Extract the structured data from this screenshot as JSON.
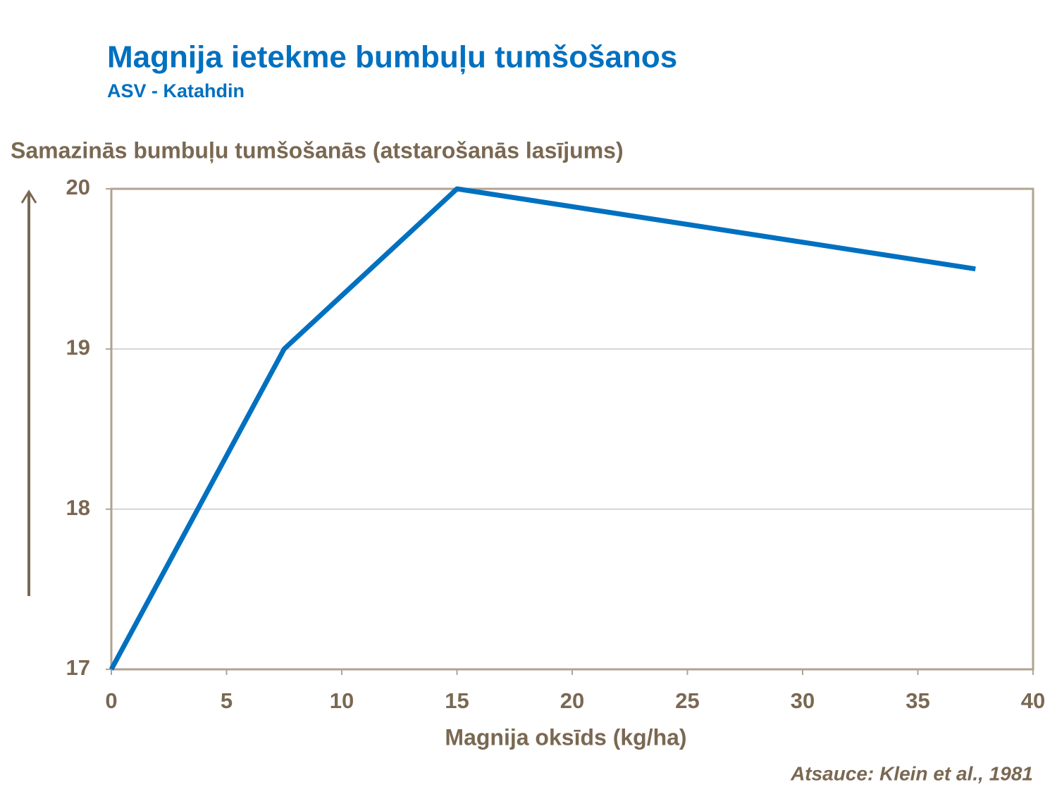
{
  "chart_data": {
    "type": "line",
    "title": "Magnija ietekme bumbuļu tumšošanos",
    "subtitle": "ASV - Katahdin",
    "y_label": "Samazinās bumbuļu tumšošanās (atstarošanās lasījums)",
    "x_label": "Magnija oksīds (kg/ha)",
    "source": "Atsauce: Klein et al., 1981",
    "x": [
      0,
      7.5,
      15,
      37.5
    ],
    "series": [
      {
        "color": "#0070c0",
        "values": [
          17,
          19,
          20,
          19.5
        ]
      }
    ],
    "xlim": [
      0,
      40
    ],
    "xticks": [
      0,
      5,
      10,
      15,
      20,
      25,
      30,
      35,
      40
    ],
    "ylim": [
      17,
      20
    ],
    "yticks": [
      17,
      18,
      19,
      20
    ],
    "grid": true
  }
}
